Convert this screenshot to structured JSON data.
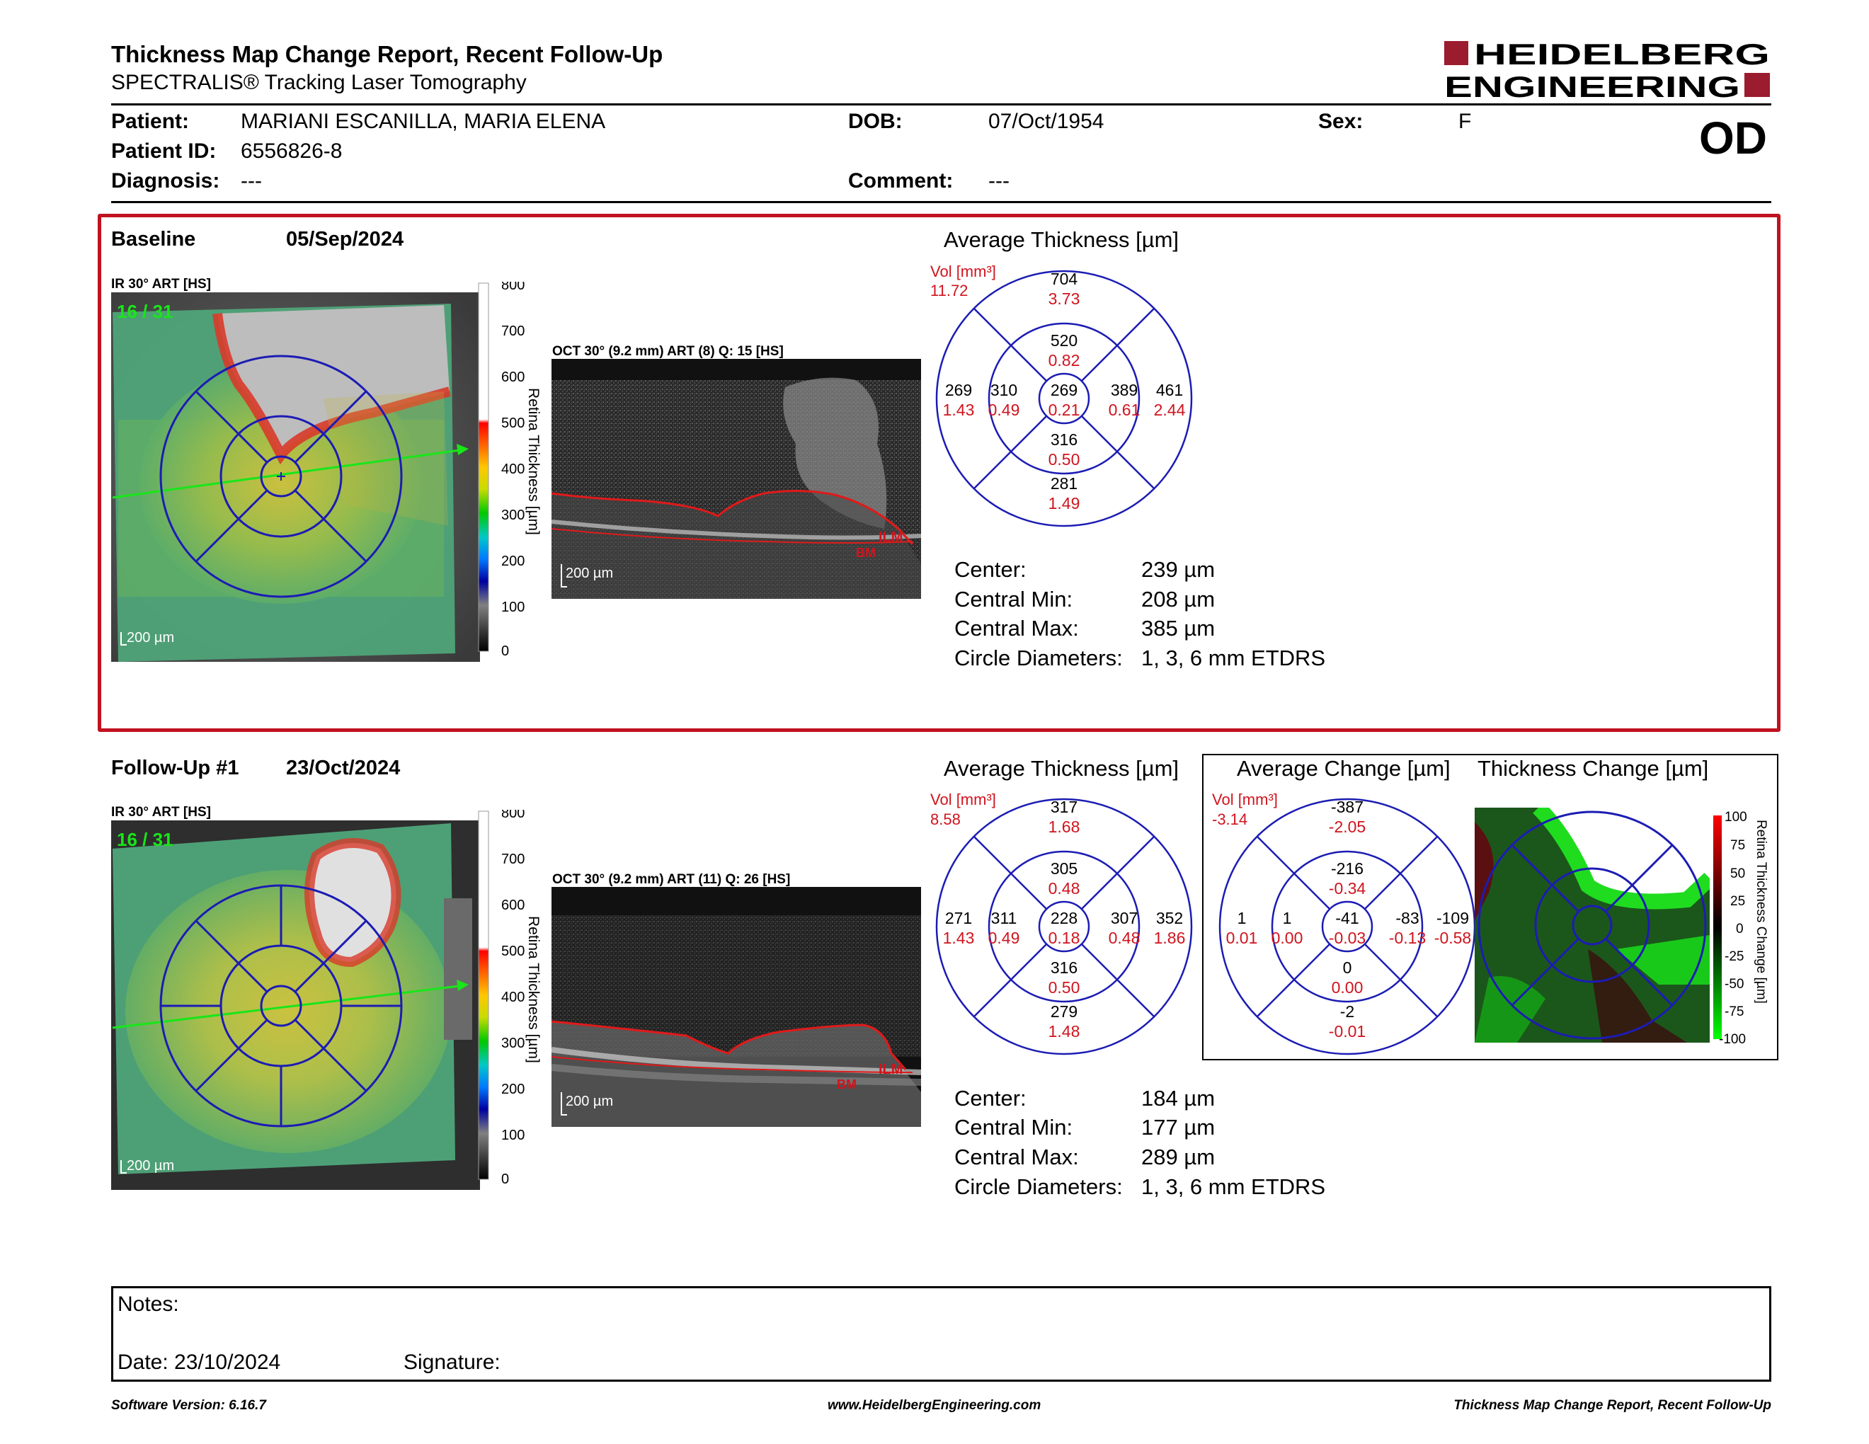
{
  "report": {
    "title": "Thickness Map Change Report, Recent Follow-Up",
    "subtitle": "SPECTRALIS® Tracking Laser Tomography",
    "logo_line1": "HEIDELBERG",
    "logo_line2": "ENGINEERING",
    "eye": "OD"
  },
  "patient": {
    "patient_label": "Patient:",
    "patient_value": "MARIANI ESCANILLA, MARIA ELENA",
    "id_label": "Patient ID:",
    "id_value": "6556826-8",
    "diagnosis_label": "Diagnosis:",
    "diagnosis_value": "---",
    "dob_label": "DOB:",
    "dob_value": "07/Oct/1954",
    "comment_label": "Comment:",
    "comment_value": "---",
    "sex_label": "Sex:",
    "sex_value": "F"
  },
  "baseline": {
    "label": "Baseline",
    "date": "05/Sep/2024",
    "ir_label": "IR 30° ART [HS]",
    "frame": "16 / 31",
    "scale_label": "200 µm",
    "oct_label": "OCT 30° (9.2 mm) ART (8) Q: 15 [HS]",
    "oct_scale": "200 µm",
    "oct_ilm": "ILM",
    "oct_bm": "BM",
    "colorbar_title": "Retina Thickness [µm]",
    "colorbar_ticks": [
      "800",
      "700",
      "600",
      "500",
      "400",
      "300",
      "200",
      "100",
      "0"
    ],
    "avg_title": "Average Thickness [µm]",
    "vol_label": "Vol [mm³]",
    "vol_value": "11.72",
    "metrics": [
      {
        "label": "Center:",
        "value": "239 µm"
      },
      {
        "label": "Central Min:",
        "value": "208 µm"
      },
      {
        "label": "Central Max:",
        "value": "385 µm"
      },
      {
        "label": "Circle Diameters:",
        "value": "1, 3, 6 mm ETDRS"
      }
    ]
  },
  "followup": {
    "label": "Follow-Up #1",
    "date": "23/Oct/2024",
    "ir_label": "IR 30° ART [HS]",
    "frame": "16 / 31",
    "scale_label": "200 µm",
    "oct_label": "OCT 30° (9.2 mm) ART (11) Q: 26 [HS]",
    "oct_scale": "200 µm",
    "oct_ilm": "ILM",
    "oct_bm": "BM",
    "colorbar_title": "Retina Thickness [µm]",
    "colorbar_ticks": [
      "800",
      "700",
      "600",
      "500",
      "400",
      "300",
      "200",
      "100",
      "0"
    ],
    "avg_title": "Average Thickness [µm]",
    "vol_label": "Vol [mm³]",
    "vol_value": "8.58",
    "change_title": "Average Change [µm]",
    "change_vol_label": "Vol [mm³]",
    "change_vol_value": "-3.14",
    "thick_change_title": "Thickness Change [µm]",
    "change_colorbar_title": "Retina Thickness Change [µm]",
    "change_colorbar_ticks": [
      "100",
      "75",
      "50",
      "25",
      "0",
      "-25",
      "-50",
      "-75",
      "-100"
    ],
    "metrics": [
      {
        "label": "Center:",
        "value": "184 µm"
      },
      {
        "label": "Central Min:",
        "value": "177 µm"
      },
      {
        "label": "Central Max:",
        "value": "289 µm"
      },
      {
        "label": "Circle Diameters:",
        "value": "1, 3, 6 mm ETDRS"
      }
    ]
  },
  "chart_data": [
    {
      "type": "table",
      "title": "Average Thickness [µm]",
      "section": "Baseline",
      "grid": "ETDRS 1, 3, 6 mm",
      "sectors": {
        "center": {
          "thickness": 269,
          "volume": 0.21
        },
        "inner_superior": {
          "thickness": 520,
          "volume": 0.82
        },
        "inner_nasal": {
          "thickness": 389,
          "volume": 0.61
        },
        "inner_inferior": {
          "thickness": 316,
          "volume": 0.5
        },
        "inner_temporal": {
          "thickness": 310,
          "volume": 0.49
        },
        "outer_superior": {
          "thickness": 704,
          "volume": 3.73
        },
        "outer_nasal": {
          "thickness": 461,
          "volume": 2.44
        },
        "outer_inferior": {
          "thickness": 281,
          "volume": 1.49
        },
        "outer_temporal": {
          "thickness": 269,
          "volume": 1.43
        }
      },
      "total_volume": 11.72
    },
    {
      "type": "table",
      "title": "Average Thickness [µm]",
      "section": "Follow-Up #1",
      "grid": "ETDRS 1, 3, 6 mm",
      "sectors": {
        "center": {
          "thickness": 228,
          "volume": 0.18
        },
        "inner_superior": {
          "thickness": 305,
          "volume": 0.48
        },
        "inner_nasal": {
          "thickness": 307,
          "volume": 0.48
        },
        "inner_inferior": {
          "thickness": 316,
          "volume": 0.5
        },
        "inner_temporal": {
          "thickness": 311,
          "volume": 0.49
        },
        "outer_superior": {
          "thickness": 317,
          "volume": 1.68
        },
        "outer_nasal": {
          "thickness": 352,
          "volume": 1.86
        },
        "outer_inferior": {
          "thickness": 279,
          "volume": 1.48
        },
        "outer_temporal": {
          "thickness": 271,
          "volume": 1.43
        }
      },
      "total_volume": 8.58
    },
    {
      "type": "table",
      "title": "Average Change [µm]",
      "section": "Follow-Up #1",
      "grid": "ETDRS 1, 3, 6 mm",
      "sectors": {
        "center": {
          "thickness": -41,
          "volume": -0.03
        },
        "inner_superior": {
          "thickness": -216,
          "volume": -0.34
        },
        "inner_nasal": {
          "thickness": -83,
          "volume": -0.13
        },
        "inner_inferior": {
          "thickness": 0,
          "volume": 0.0
        },
        "inner_temporal": {
          "thickness": 1,
          "volume": 0.0
        },
        "outer_superior": {
          "thickness": -387,
          "volume": -2.05
        },
        "outer_nasal": {
          "thickness": -109,
          "volume": -0.58
        },
        "outer_inferior": {
          "thickness": -2,
          "volume": -0.01
        },
        "outer_temporal": {
          "thickness": 1,
          "volume": 0.01
        }
      },
      "total_volume": -3.14
    }
  ],
  "notes": {
    "notes_label": "Notes:",
    "date_label": "Date: 23/10/2024",
    "signature_label": "Signature:"
  },
  "footer": {
    "left": "Software Version: 6.16.7",
    "center": "www.HeidelbergEngineering.com",
    "right": "Thickness Map Change Report, Recent Follow-Up"
  },
  "colors": {
    "grid_blue": "#1c1cb4",
    "value_red": "#d0141e",
    "box_red": "#c1121f",
    "logo_red": "#9b1c2e"
  }
}
